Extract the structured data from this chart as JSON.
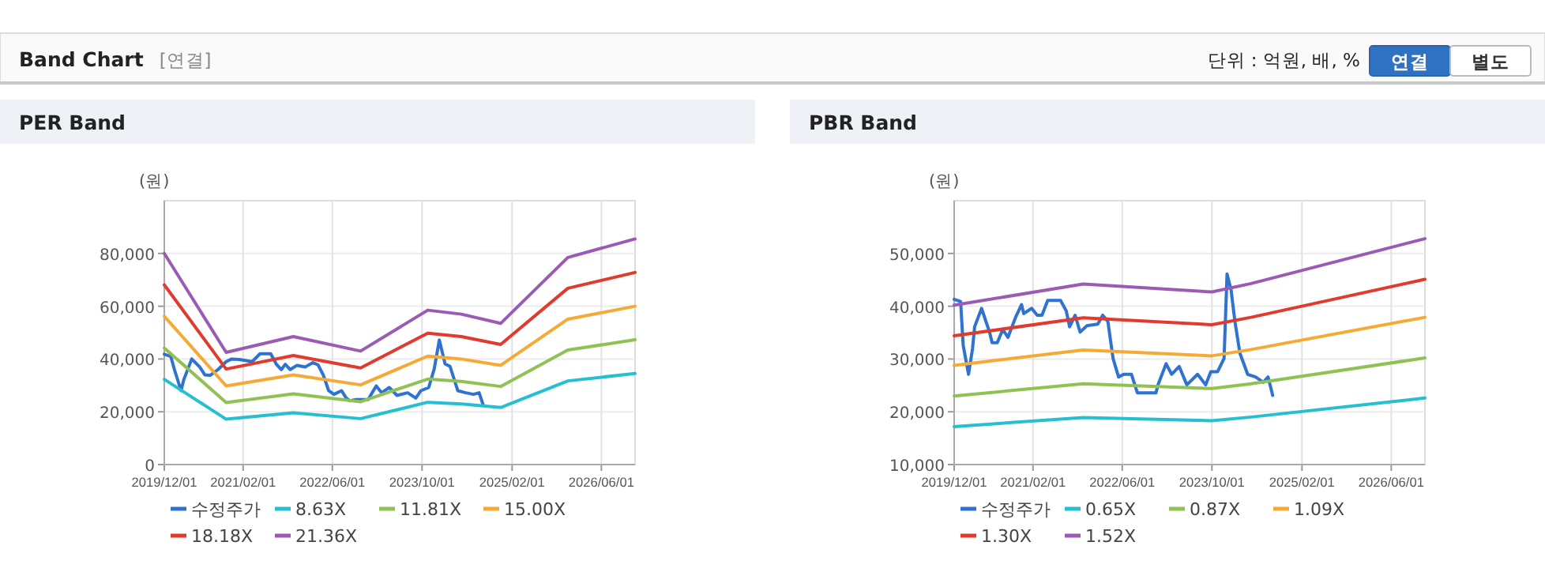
{
  "chart_data": [
    {
      "type": "other",
      "title": "Band Chart",
      "annotations": [
        "[연결]",
        "단위 : 억원, 배, %",
        "연결",
        "별도"
      ]
    },
    {
      "type": "line",
      "title": "PER Band",
      "ylabel": "(원)",
      "xlim": [
        "2019-12-01",
        "2026-12-01"
      ],
      "ylim": [
        0,
        100000
      ],
      "xticks": [
        {
          "value": "2019-12-01",
          "label": "2019/12/01"
        },
        {
          "value": "2021-02-01",
          "label": "2021/02/01"
        },
        {
          "value": "2022-06-01",
          "label": "2022/06/01"
        },
        {
          "value": "2023-10-01",
          "label": "2023/10/01"
        },
        {
          "value": "2025-02-01",
          "label": "2025/02/01"
        },
        {
          "value": "2026-06-01",
          "label": "2026/06/01"
        }
      ],
      "yticks": [
        0,
        {
          "value": 20000,
          "label": "20,000"
        },
        {
          "value": 40000,
          "label": "40,000"
        },
        {
          "value": 60000,
          "label": "60,000"
        },
        {
          "value": 80000,
          "label": "80,000"
        }
      ],
      "grid": true,
      "legend": "bottom",
      "series": [
        {
          "name": "수정주가",
          "color": "#2f72d0",
          "x": [
            "2019-12-01",
            "2020-01-05",
            "2020-01-25",
            "2020-03-01",
            "2020-03-15",
            "2020-04-28",
            "2020-06-10",
            "2020-07-08",
            "2020-08-06",
            "2020-09-18",
            "2020-11-01",
            "2020-12-01",
            "2021-01-12",
            "2021-03-22",
            "2021-05-04",
            "2021-07-01",
            "2021-08-01",
            "2021-08-28",
            "2021-09-18",
            "2021-10-15",
            "2021-11-21",
            "2022-01-04",
            "2022-02-15",
            "2022-03-15",
            "2022-04-12",
            "2022-05-12",
            "2022-06-09",
            "2022-07-21",
            "2022-08-15",
            "2022-09-03",
            "2022-10-03",
            "2022-12-12",
            "2023-01-25",
            "2023-02-24",
            "2023-04-06",
            "2023-05-18",
            "2023-07-15",
            "2023-08-28",
            "2023-09-25",
            "2023-11-06",
            "2023-12-06",
            "2024-01-03",
            "2024-02-03",
            "2024-03-01",
            "2024-04-12",
            "2024-05-25",
            "2024-07-06",
            "2024-08-06",
            "2024-08-28"
          ],
          "values": [
            41800,
            41000,
            36000,
            28000,
            32000,
            40000,
            37000,
            34000,
            33800,
            36000,
            39000,
            40000,
            39800,
            39000,
            42000,
            42000,
            38000,
            36000,
            38000,
            36000,
            37600,
            37000,
            38600,
            37800,
            34000,
            28000,
            26600,
            28000,
            25200,
            24200,
            24600,
            24600,
            29800,
            27200,
            29200,
            26200,
            27200,
            25200,
            28000,
            29200,
            36200,
            47200,
            38200,
            37200,
            28000,
            27200,
            26600,
            27200,
            22600
          ]
        },
        {
          "name": "8.63X",
          "color": "#26bfd0",
          "x": [
            "2019-12-01",
            "2020-11-01",
            "2021-11-01",
            "2022-11-01",
            "2023-11-01",
            "2024-05-01",
            "2024-12-01",
            "2025-12-01",
            "2026-12-01"
          ],
          "values": [
            32300,
            17200,
            19600,
            17400,
            23600,
            23000,
            21600,
            31700,
            34500
          ]
        },
        {
          "name": "11.81X",
          "color": "#8fc153",
          "x": [
            "2019-12-01",
            "2020-11-01",
            "2021-11-01",
            "2022-11-01",
            "2023-11-01",
            "2024-05-01",
            "2024-12-01",
            "2025-12-01",
            "2026-12-01"
          ],
          "values": [
            44200,
            23500,
            26800,
            23800,
            32400,
            31500,
            29600,
            43400,
            47300
          ]
        },
        {
          "name": "15.00X",
          "color": "#f7a935",
          "x": [
            "2019-12-01",
            "2020-11-01",
            "2021-11-01",
            "2022-11-01",
            "2023-11-01",
            "2024-05-01",
            "2024-12-01",
            "2025-12-01",
            "2026-12-01"
          ],
          "values": [
            56200,
            29800,
            34000,
            30200,
            41100,
            40000,
            37600,
            55100,
            60000
          ]
        },
        {
          "name": "18.18X",
          "color": "#e03b2c",
          "x": [
            "2019-12-01",
            "2020-11-01",
            "2021-11-01",
            "2022-11-01",
            "2023-11-01",
            "2024-05-01",
            "2024-12-01",
            "2025-12-01",
            "2026-12-01"
          ],
          "values": [
            68100,
            36200,
            41300,
            36600,
            49800,
            48500,
            45500,
            66800,
            72800
          ]
        },
        {
          "name": "21.36X",
          "color": "#9c5bb3",
          "x": [
            "2019-12-01",
            "2020-11-01",
            "2021-11-01",
            "2022-11-01",
            "2023-11-01",
            "2024-05-01",
            "2024-12-01",
            "2025-12-01",
            "2026-12-01"
          ],
          "values": [
            80000,
            42500,
            48500,
            43000,
            58500,
            57000,
            53500,
            78500,
            85500
          ]
        }
      ]
    },
    {
      "type": "line",
      "title": "PBR Band",
      "ylabel": "(원)",
      "xlim": [
        "2019-12-01",
        "2026-12-01"
      ],
      "ylim": [
        10000,
        60000
      ],
      "xticks": [
        {
          "value": "2019-12-01",
          "label": "2019/12/01"
        },
        {
          "value": "2021-02-01",
          "label": "2021/02/01"
        },
        {
          "value": "2022-06-01",
          "label": "2022/06/01"
        },
        {
          "value": "2023-10-01",
          "label": "2023/10/01"
        },
        {
          "value": "2025-02-01",
          "label": "2025/02/01"
        },
        {
          "value": "2026-06-01",
          "label": "2026/06/01"
        }
      ],
      "yticks": [
        {
          "value": 10000,
          "label": "10,000"
        },
        {
          "value": 20000,
          "label": "20,000"
        },
        {
          "value": 30000,
          "label": "30,000"
        },
        {
          "value": 40000,
          "label": "40,000"
        },
        {
          "value": 50000,
          "label": "50,000"
        }
      ],
      "grid": true,
      "legend": "bottom",
      "series": [
        {
          "name": "수정주가",
          "color": "#2f72d0",
          "x": [
            "2019-12-01",
            "2020-01-05",
            "2020-01-19",
            "2020-02-17",
            "2020-03-10",
            "2020-03-21",
            "2020-04-28",
            "2020-06-10",
            "2020-06-24",
            "2020-07-22",
            "2020-08-21",
            "2020-09-18",
            "2020-11-01",
            "2020-12-01",
            "2020-12-13",
            "2021-01-25",
            "2021-02-24",
            "2021-03-22",
            "2021-04-22",
            "2021-07-01",
            "2021-08-01",
            "2021-08-19",
            "2021-09-18",
            "2021-10-15",
            "2021-11-21",
            "2022-01-19",
            "2022-02-15",
            "2022-03-15",
            "2022-04-12",
            "2022-05-12",
            "2022-06-09",
            "2022-07-21",
            "2022-08-22",
            "2022-10-16",
            "2022-12-01",
            "2022-12-12",
            "2023-01-25",
            "2023-02-24",
            "2023-04-06",
            "2023-05-18",
            "2023-07-15",
            "2023-08-28",
            "2023-09-25",
            "2023-11-01",
            "2023-12-06",
            "2023-12-22",
            "2024-01-13",
            "2024-02-03",
            "2024-03-01",
            "2024-04-12",
            "2024-05-25",
            "2024-07-06",
            "2024-08-01",
            "2024-08-26"
          ],
          "values": [
            41300,
            40900,
            32600,
            27100,
            32000,
            36100,
            39600,
            35100,
            33100,
            33100,
            35600,
            34100,
            38100,
            40300,
            38600,
            39600,
            38300,
            38300,
            41100,
            41100,
            39100,
            36100,
            38300,
            35100,
            36300,
            36600,
            38300,
            37100,
            30100,
            26600,
            27100,
            27100,
            23600,
            23600,
            23600,
            25100,
            29100,
            27100,
            28600,
            25100,
            27100,
            25100,
            27600,
            27600,
            30100,
            46100,
            43100,
            37100,
            31100,
            27100,
            26600,
            25600,
            26600,
            23100
          ]
        },
        {
          "name": "0.65X",
          "color": "#26bfd0",
          "x": [
            "2019-12-01",
            "2021-11-01",
            "2023-10-01",
            "2024-05-01",
            "2026-12-01"
          ],
          "values": [
            17200,
            18900,
            18300,
            19000,
            22600
          ]
        },
        {
          "name": "0.87X",
          "color": "#8fc153",
          "x": [
            "2019-12-01",
            "2021-11-01",
            "2023-10-01",
            "2024-05-01",
            "2026-12-01"
          ],
          "values": [
            23000,
            25300,
            24400,
            25300,
            30200
          ]
        },
        {
          "name": "1.09X",
          "color": "#f7a935",
          "x": [
            "2019-12-01",
            "2021-11-01",
            "2023-10-01",
            "2024-05-01",
            "2026-12-01"
          ],
          "values": [
            28800,
            31700,
            30600,
            31800,
            37900
          ]
        },
        {
          "name": "1.30X",
          "color": "#e03b2c",
          "x": [
            "2019-12-01",
            "2021-11-01",
            "2023-10-01",
            "2024-05-01",
            "2026-12-01"
          ],
          "values": [
            34400,
            37800,
            36500,
            37900,
            45100
          ]
        },
        {
          "name": "1.52X",
          "color": "#9c5bb3",
          "x": [
            "2019-12-01",
            "2021-11-01",
            "2023-10-01",
            "2024-05-01",
            "2026-12-01"
          ],
          "values": [
            40200,
            44200,
            42700,
            44300,
            52800
          ]
        }
      ]
    }
  ]
}
